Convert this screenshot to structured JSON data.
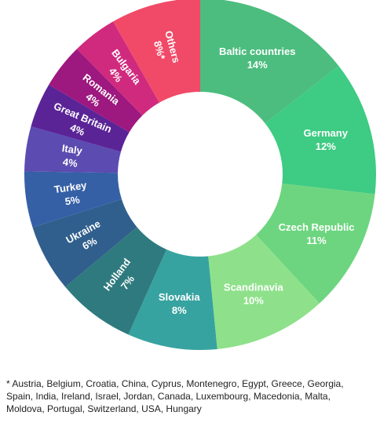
{
  "chart_data": {
    "type": "pie",
    "slices": [
      {
        "label": "Baltic countries",
        "display": "14%",
        "value": 14,
        "color": "#4cbd7f"
      },
      {
        "label": "Germany",
        "display": "12%",
        "value": 12,
        "color": "#3ecb83"
      },
      {
        "label": "Czech Republic",
        "display": "11%",
        "value": 11,
        "color": "#6dd57f"
      },
      {
        "label": "Scandinavia",
        "display": "10%",
        "value": 10,
        "color": "#8ee18a"
      },
      {
        "label": "Slovakia",
        "display": "8%",
        "value": 8,
        "color": "#37a3a0"
      },
      {
        "label": "Holland",
        "display": "7%",
        "value": 7,
        "color": "#2f7a7e"
      },
      {
        "label": "Ukraine",
        "display": "6%",
        "value": 6,
        "color": "#305f8d"
      },
      {
        "label": "Turkey",
        "display": "5%",
        "value": 5,
        "color": "#3560a6"
      },
      {
        "label": "Italy",
        "display": "4%",
        "value": 4,
        "color": "#5c4bb0"
      },
      {
        "label": "Great Britain",
        "display": "4%",
        "value": 4,
        "color": "#5a2497"
      },
      {
        "label": "Romania",
        "display": "4%",
        "value": 4,
        "color": "#9d187f"
      },
      {
        "label": "Bulgaria",
        "display": "4%",
        "value": 4,
        "color": "#d02a7e"
      },
      {
        "label": "Others",
        "display": "8%*",
        "value": 8,
        "color": "#f04a68"
      }
    ]
  },
  "footnote": "* Austria, Belgium, Croatia, China, Cyprus, Montenegro, Egypt, Greece, Georgia, Spain, India, Ireland, Israel, Jordan, Canada, Luxembourg, Macedonia, Malta, Moldova, Portugal, Switzerland, USA, Hungary"
}
